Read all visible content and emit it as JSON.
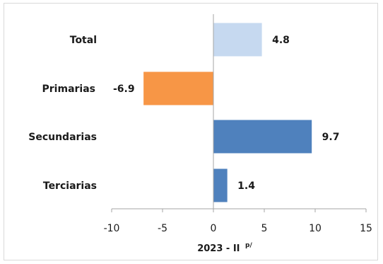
{
  "chart_data": {
    "type": "bar",
    "orientation": "horizontal",
    "categories": [
      "Total",
      "Primarias",
      "Secundarias",
      "Terciarias"
    ],
    "values": [
      4.8,
      -6.9,
      9.7,
      1.4
    ],
    "data_labels": [
      "4.8",
      "-6.9",
      "9.7",
      "1.4"
    ],
    "colors": [
      "#c6d9f0",
      "#f79646",
      "#4f81bd",
      "#4f81bd"
    ],
    "xlim": [
      -10,
      15
    ],
    "xticks": [
      -10,
      -5,
      0,
      5,
      10,
      15
    ],
    "xtick_labels": [
      "-10",
      "-5",
      "0",
      "5",
      "10",
      "15"
    ],
    "xlabel": "2023 - II",
    "xlabel_superscript": "p/",
    "grid": false,
    "legend": "none"
  }
}
